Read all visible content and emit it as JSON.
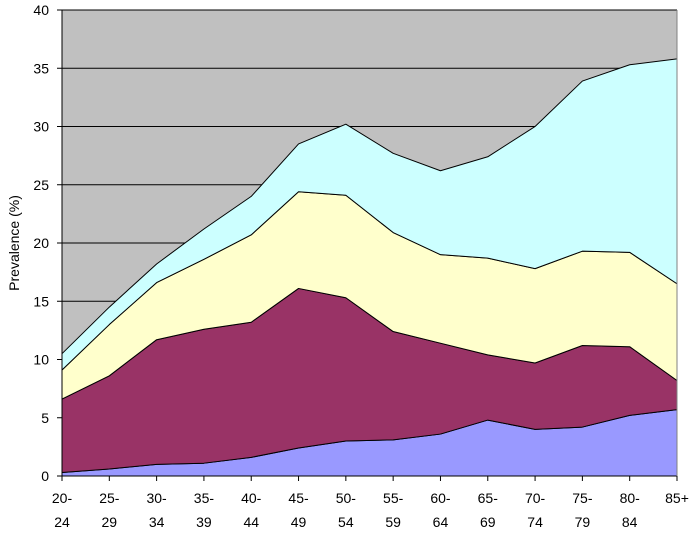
{
  "chart_data": {
    "type": "area",
    "stacked": true,
    "title": "",
    "xlabel": "",
    "ylabel": "Prevalence (%)",
    "ylim": [
      0,
      40
    ],
    "yticks": [
      0,
      5,
      10,
      15,
      20,
      25,
      30,
      35,
      40
    ],
    "grid": true,
    "legend": "none",
    "plot_background": "#C0C0C0",
    "categories": [
      [
        "20-",
        "24"
      ],
      [
        "25-",
        "29"
      ],
      [
        "30-",
        "34"
      ],
      [
        "35-",
        "39"
      ],
      [
        "40-",
        "44"
      ],
      [
        "45-",
        "49"
      ],
      [
        "50-",
        "54"
      ],
      [
        "55-",
        "59"
      ],
      [
        "60-",
        "64"
      ],
      [
        "65-",
        "69"
      ],
      [
        "70-",
        "74"
      ],
      [
        "75-",
        "79"
      ],
      [
        "80-",
        "84"
      ],
      [
        "85+",
        ""
      ]
    ],
    "series": [
      {
        "color": "#9999FF",
        "values": [
          0.3,
          0.6,
          1.0,
          1.1,
          1.6,
          2.4,
          3.0,
          3.1,
          3.6,
          4.8,
          4.0,
          4.2,
          5.2,
          5.7
        ]
      },
      {
        "color": "#993366",
        "values": [
          6.3,
          8.0,
          10.7,
          11.5,
          11.6,
          13.7,
          12.3,
          9.3,
          7.8,
          5.6,
          5.7,
          7.0,
          5.9,
          2.5
        ]
      },
      {
        "color": "#FFFFCC",
        "values": [
          2.5,
          4.4,
          4.9,
          6.0,
          7.5,
          8.3,
          8.8,
          8.5,
          7.6,
          8.3,
          8.1,
          8.1,
          8.1,
          8.3
        ]
      },
      {
        "color": "#CCFFFF",
        "values": [
          1.4,
          1.5,
          1.6,
          2.6,
          3.3,
          4.1,
          6.1,
          6.8,
          7.2,
          8.7,
          12.2,
          14.6,
          16.1,
          19.3
        ]
      }
    ]
  }
}
